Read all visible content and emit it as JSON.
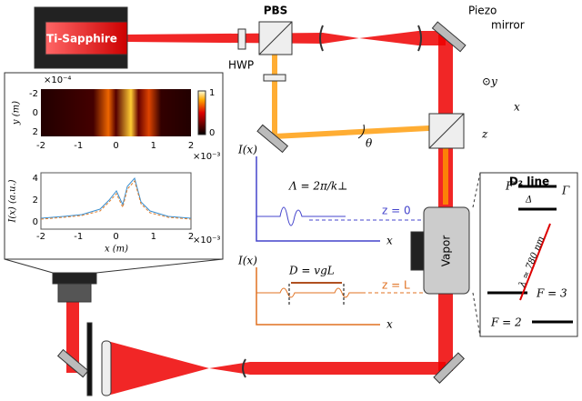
{
  "laser": "Ti-Sapphire",
  "pbs": "PBS",
  "hwp": "HWP",
  "piezo": [
    "Piezo",
    "mirror"
  ],
  "axes": {
    "y": "⊙y",
    "x": "x",
    "z": "z"
  },
  "theta": "θ",
  "image_plot": {
    "exponent_y": "×10⁻⁴",
    "ylabel": "y (m)",
    "yticks": [
      -2,
      0,
      2
    ],
    "xticks": [
      -2,
      -1,
      0,
      1,
      2
    ],
    "exponent_x": "×10⁻³",
    "colorbar": [
      1,
      0
    ]
  },
  "line_plot": {
    "ylabel": "I(x) (a.u.)",
    "yticks": [
      4,
      2,
      0
    ],
    "xticks": [
      -2,
      -1,
      0,
      1,
      2
    ],
    "xlabel": "x (m)",
    "exponent_x": "×10⁻³"
  },
  "top_trace": {
    "ylabel": "I(x)",
    "annotation": "Λ = 2π/k⊥",
    "plane": "z = 0",
    "xlabel": "x"
  },
  "bottom_trace": {
    "ylabel": "I(x)",
    "annotation": "D = vgL",
    "plane": "z = L",
    "xlabel": "x"
  },
  "vapor": "Vapor",
  "levels": {
    "title": "D₂ line",
    "excited": "F′",
    "gamma": "Γ",
    "delta": "Δ",
    "wavelength": "λ ≃ 780 nm",
    "f3": "F = 3",
    "f2": "F = 2"
  }
}
